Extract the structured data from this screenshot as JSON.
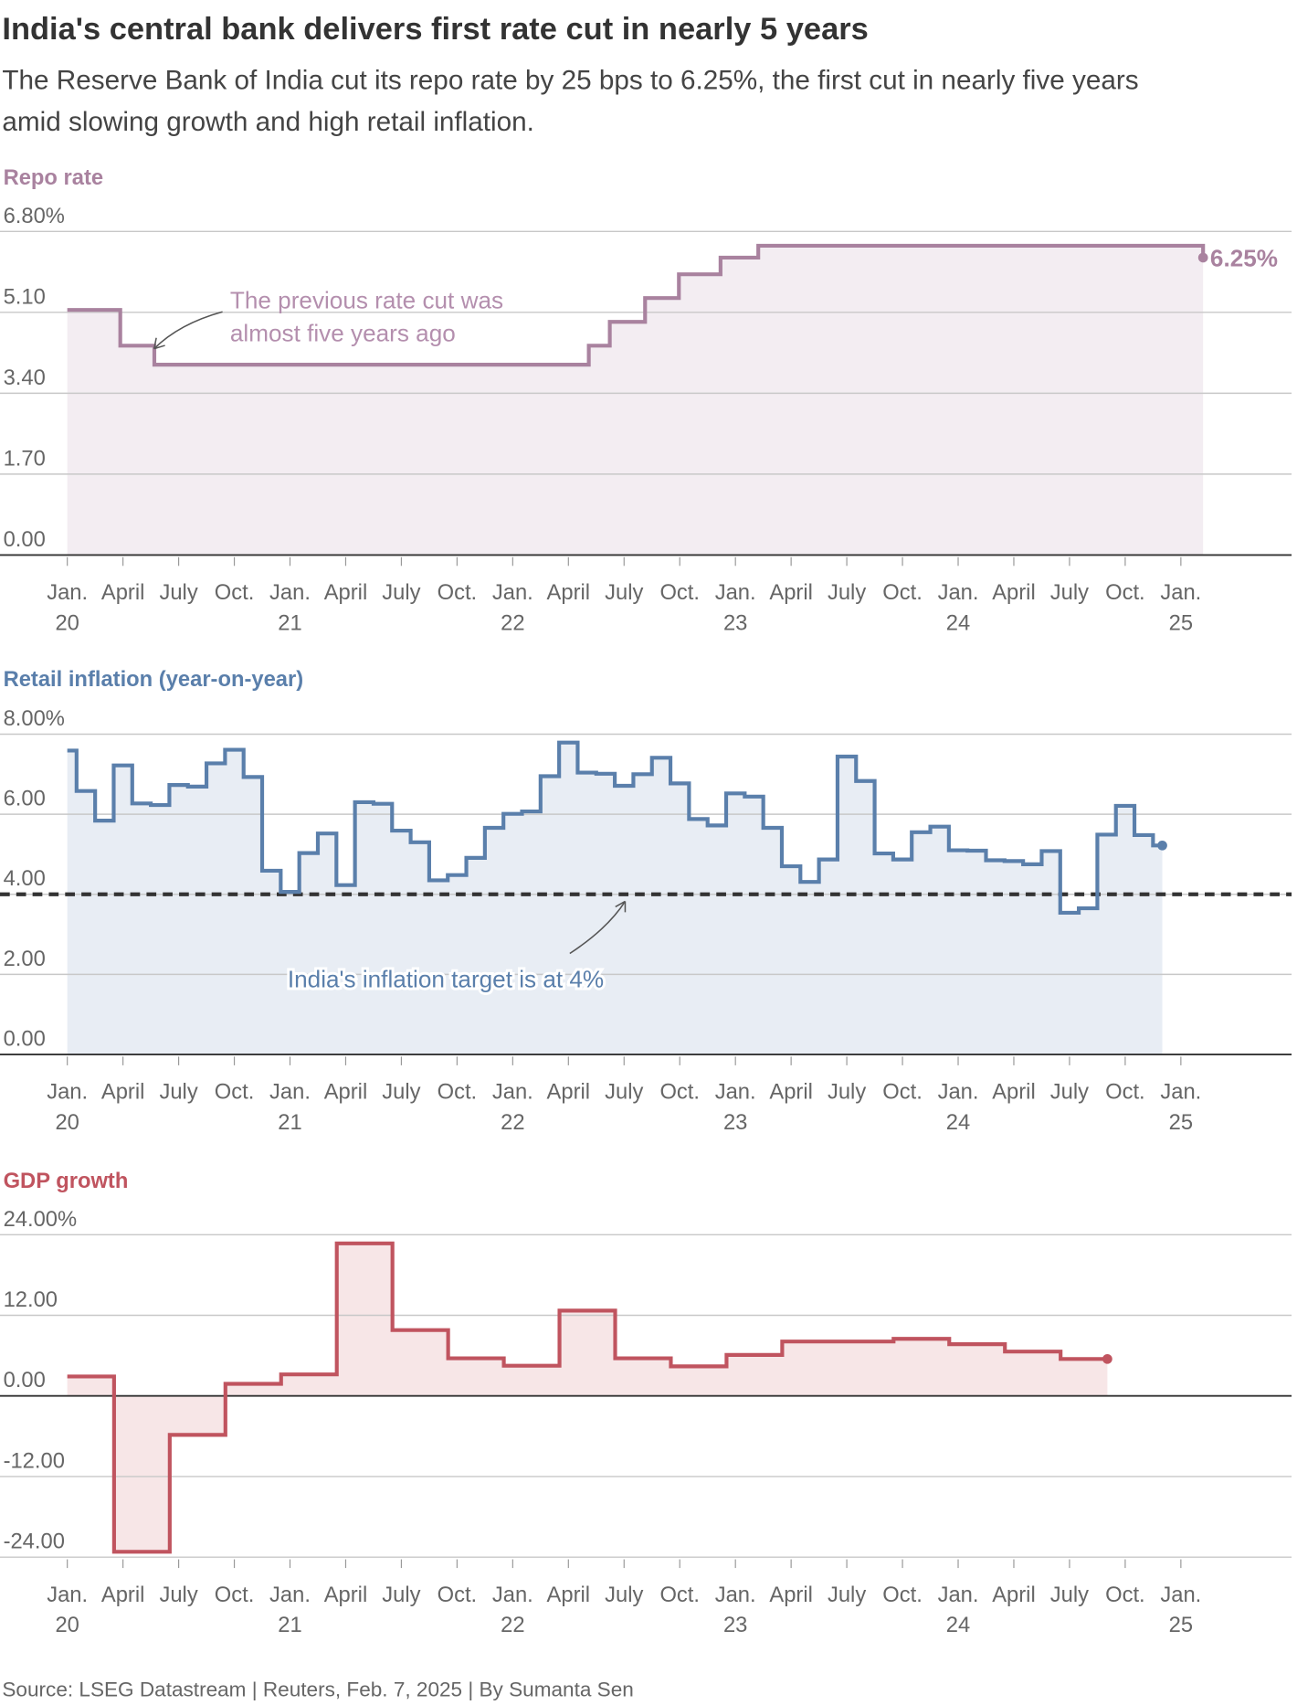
{
  "header": {
    "title": "India's central bank delivers first rate cut in nearly 5 years",
    "subtitle_lines": [
      "The Reserve Bank of India cut its repo rate by 25 bps to 6.25%, the first cut in nearly five years",
      "amid slowing growth and high retail inflation."
    ]
  },
  "footer": {
    "source": "Source: LSEG Datastream | Reuters, Feb. 7, 2025 | By Sumanta Sen"
  },
  "colors": {
    "repo": "#a9829f",
    "repo_fill": "#f3edf2",
    "inflation": "#5a7fab",
    "inflation_fill": "#e8edf4",
    "gdp": "#c0545f",
    "gdp_fill": "#f7e6e7",
    "target_line": "#333333"
  },
  "x_axis": {
    "month_labels": [
      "Jan.",
      "April",
      "July",
      "Oct.",
      "Jan.",
      "April",
      "July",
      "Oct.",
      "Jan.",
      "April",
      "July",
      "Oct.",
      "Jan.",
      "April",
      "July",
      "Oct.",
      "Jan.",
      "April",
      "July",
      "Oct.",
      "Jan."
    ],
    "year_labels": [
      "20",
      "21",
      "22",
      "23",
      "24",
      "25"
    ]
  },
  "chart_data": [
    {
      "type": "line",
      "title": "Repo rate",
      "step": true,
      "ylim": [
        0,
        6.8
      ],
      "yticks": [
        "0.00",
        "1.70",
        "3.40",
        "5.10",
        "6.80%"
      ],
      "yticks_values": [
        0,
        1.7,
        3.4,
        5.1,
        6.8
      ],
      "grid": true,
      "points": [
        [
          "2020-01-01",
          5.15
        ],
        [
          "2020-03-27",
          4.4
        ],
        [
          "2020-05-22",
          4.0
        ],
        [
          "2022-05-04",
          4.4
        ],
        [
          "2022-06-08",
          4.9
        ],
        [
          "2022-08-05",
          5.4
        ],
        [
          "2022-09-30",
          5.9
        ],
        [
          "2022-12-07",
          6.25
        ],
        [
          "2023-02-08",
          6.5
        ],
        [
          "2025-02-07",
          6.25
        ]
      ],
      "end_label": "6.25%",
      "annotation": [
        "The previous rate cut was",
        "almost five years ago"
      ]
    },
    {
      "type": "line",
      "title": "Retail inflation (year-on-year)",
      "step": true,
      "ylim": [
        0,
        8
      ],
      "yticks": [
        "0.00",
        "2.00",
        "4.00",
        "6.00",
        "8.00%"
      ],
      "yticks_values": [
        0,
        2,
        4,
        6,
        8
      ],
      "grid": true,
      "start": "2020-01",
      "monthly_values": [
        7.59,
        6.58,
        5.84,
        7.22,
        6.27,
        6.23,
        6.73,
        6.69,
        7.27,
        7.61,
        6.93,
        4.59,
        4.06,
        5.03,
        5.52,
        4.23,
        6.3,
        6.26,
        5.59,
        5.3,
        4.35,
        4.48,
        4.91,
        5.66,
        6.01,
        6.07,
        6.95,
        7.79,
        7.04,
        7.01,
        6.71,
        7.0,
        7.41,
        6.77,
        5.88,
        5.72,
        6.52,
        6.44,
        5.66,
        4.7,
        4.31,
        4.87,
        7.44,
        6.83,
        5.02,
        4.87,
        5.55,
        5.69,
        5.1,
        5.09,
        4.85,
        4.83,
        4.75,
        5.08,
        3.54,
        3.65,
        5.49,
        6.21,
        5.48,
        5.22
      ],
      "reference_line": 4,
      "annotation": "India's inflation target is at 4%"
    },
    {
      "type": "line",
      "title": "GDP growth",
      "step": true,
      "ylim": [
        -24,
        24
      ],
      "yticks": [
        "-24.00",
        "-12.00",
        "0.00",
        "12.00",
        "24.00%"
      ],
      "yticks_values": [
        -24,
        -12,
        0,
        12,
        24
      ],
      "grid": true,
      "quarters": [
        "Jan-Mar 2020",
        "Apr-Jun 2020",
        "Jul-Sep 2020",
        "Oct-Dec 2020",
        "Jan-Mar 2021",
        "Apr-Jun 2021",
        "Jul-Sep 2021",
        "Oct-Dec 2021",
        "Jan-Mar 2022",
        "Apr-Jun 2022",
        "Jul-Sep 2022",
        "Oct-Dec 2022",
        "Jan-Mar 2023",
        "Apr-Jun 2023",
        "Jul-Sep 2023",
        "Oct-Dec 2023",
        "Jan-Mar 2024",
        "Apr-Jun 2024",
        "Jul-Sep 2024"
      ],
      "values": [
        2.9,
        -23.2,
        -5.8,
        1.8,
        3.2,
        22.7,
        9.8,
        5.6,
        4.5,
        12.7,
        5.6,
        4.4,
        6.1,
        8.1,
        8.1,
        8.5,
        7.7,
        6.6,
        5.5
      ]
    }
  ]
}
